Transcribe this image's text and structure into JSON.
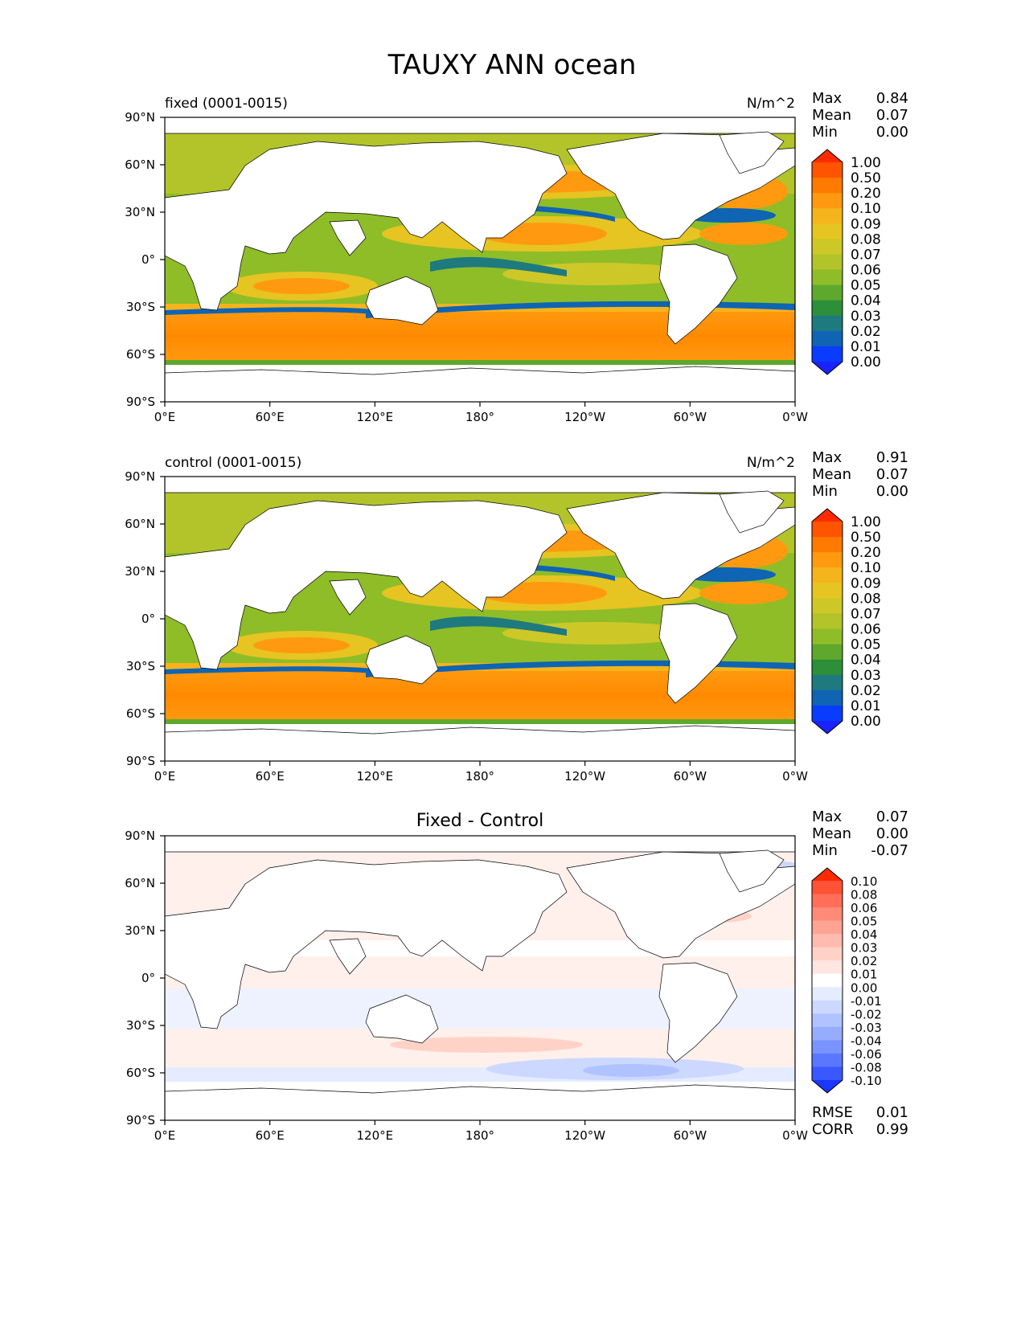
{
  "title": "TAUXY ANN ocean",
  "x_ticks": [
    "0°E",
    "60°E",
    "120°E",
    "180°",
    "120°W",
    "60°W",
    "0°W"
  ],
  "y_ticks": [
    "90°N",
    "60°N",
    "30°N",
    "0°",
    "30°S",
    "60°S",
    "90°S"
  ],
  "panels": [
    {
      "id": "fixed",
      "left_title": "fixed (0001-0015)",
      "center_title": "",
      "right_title": "N/m^2",
      "stats": [
        {
          "label": "Max",
          "value": "0.84"
        },
        {
          "label": "Mean",
          "value": "0.07"
        },
        {
          "label": "Min",
          "value": "0.00"
        }
      ],
      "colorbar": {
        "levels": [
          "1.00",
          "0.50",
          "0.20",
          "0.10",
          "0.09",
          "0.08",
          "0.07",
          "0.06",
          "0.05",
          "0.04",
          "0.03",
          "0.02",
          "0.01",
          "0.00"
        ],
        "colors": [
          "#ff2a00",
          "#ff5500",
          "#ff7a00",
          "#ff9a10",
          "#f5b41c",
          "#e6c422",
          "#cdc828",
          "#b2c42a",
          "#8ebd28",
          "#5ea82e",
          "#2e8f3a",
          "#1e7a7f",
          "#0f64b4",
          "#0a3cff",
          "#1a22ff"
        ]
      },
      "footer_stats": []
    },
    {
      "id": "control",
      "left_title": "control (0001-0015)",
      "center_title": "",
      "right_title": "N/m^2",
      "stats": [
        {
          "label": "Max",
          "value": "0.91"
        },
        {
          "label": "Mean",
          "value": "0.07"
        },
        {
          "label": "Min",
          "value": "0.00"
        }
      ],
      "colorbar": {
        "levels": [
          "1.00",
          "0.50",
          "0.20",
          "0.10",
          "0.09",
          "0.08",
          "0.07",
          "0.06",
          "0.05",
          "0.04",
          "0.03",
          "0.02",
          "0.01",
          "0.00"
        ],
        "colors": [
          "#ff2a00",
          "#ff5500",
          "#ff7a00",
          "#ff9a10",
          "#f5b41c",
          "#e6c422",
          "#cdc828",
          "#b2c42a",
          "#8ebd28",
          "#5ea82e",
          "#2e8f3a",
          "#1e7a7f",
          "#0f64b4",
          "#0a3cff",
          "#1a22ff"
        ]
      },
      "footer_stats": []
    },
    {
      "id": "diff",
      "left_title": "",
      "center_title": "Fixed - Control",
      "right_title": "",
      "stats": [
        {
          "label": "Max",
          "value": "0.07"
        },
        {
          "label": "Mean",
          "value": "0.00"
        },
        {
          "label": "Min",
          "value": "-0.07"
        }
      ],
      "colorbar": {
        "levels": [
          "0.10",
          "0.08",
          "0.06",
          "0.05",
          "0.04",
          "0.03",
          "0.02",
          "0.01",
          "0.00",
          "-0.01",
          "-0.02",
          "-0.03",
          "-0.04",
          "-0.06",
          "-0.08",
          "-0.10"
        ],
        "colors": [
          "#ff2a00",
          "#ff5236",
          "#ff6e58",
          "#ff8a78",
          "#ffa494",
          "#ffbcae",
          "#ffd2c8",
          "#ffe6e0",
          "#ffffff",
          "#e6ecff",
          "#ccd8ff",
          "#b0c2ff",
          "#96adff",
          "#7a94ff",
          "#5a78ff",
          "#3a58ff",
          "#1a36ff"
        ]
      },
      "footer_stats": [
        {
          "label": "RMSE",
          "value": "0.01"
        },
        {
          "label": "CORR",
          "value": "0.99"
        }
      ]
    }
  ]
}
